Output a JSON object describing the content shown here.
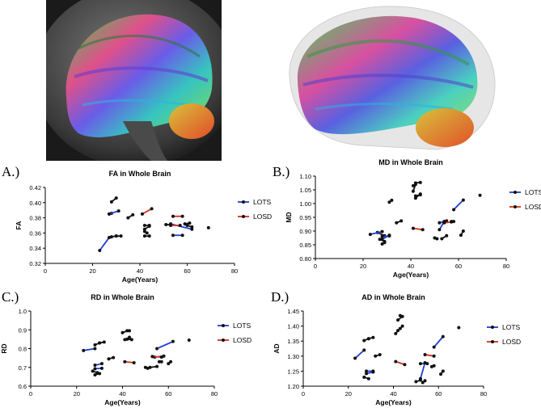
{
  "images": {
    "left": "dti-tractography-brain-sagittal-overlay",
    "right": "dti-tractography-brain-3d-render"
  },
  "legend": {
    "lots_label": "LOTS",
    "losd_label": "LOSD"
  },
  "colors": {
    "lots": "#1f3fd6",
    "losd": "#d6301a",
    "point": "#111111",
    "axis": "#000000"
  },
  "panels": [
    {
      "letter": "A.)"
    },
    {
      "letter": "B.)"
    },
    {
      "letter": "C.)"
    },
    {
      "letter": "D.)"
    }
  ],
  "chart_data": [
    {
      "type": "scatter",
      "title": "FA in Whole Brain",
      "xlabel": "Age(Years)",
      "ylabel": "FA",
      "xlim": [
        0,
        80
      ],
      "ylim": [
        0.32,
        0.42
      ],
      "xticks": [
        "0",
        "20",
        "40",
        "60",
        "80"
      ],
      "yticks": [
        "0.32",
        "0.34",
        "0.36",
        "0.38",
        "0.40",
        "0.42"
      ],
      "legend": "right",
      "lots_pairs": [
        [
          23,
          0.337,
          27,
          0.354
        ],
        [
          27,
          0.385,
          31,
          0.389
        ],
        [
          54,
          0.357,
          58,
          0.357
        ],
        [
          53,
          0.372,
          62,
          0.365
        ]
      ],
      "losd_pairs": [
        [
          41,
          0.385,
          45,
          0.392
        ],
        [
          54,
          0.382,
          58,
          0.382
        ],
        [
          53,
          0.37,
          57,
          0.37
        ]
      ],
      "black_pairs": [
        [
          28,
          0.401,
          30,
          0.406
        ],
        [
          27,
          0.385,
          28,
          0.386
        ],
        [
          28,
          0.355,
          30,
          0.356
        ],
        [
          30,
          0.356,
          32,
          0.356
        ],
        [
          35,
          0.38,
          37,
          0.384
        ],
        [
          42,
          0.356,
          44,
          0.356
        ],
        [
          42,
          0.365,
          44,
          0.369
        ],
        [
          42,
          0.37,
          44,
          0.37
        ],
        [
          51,
          0.371,
          53,
          0.371
        ],
        [
          59,
          0.372,
          61,
          0.373
        ],
        [
          60,
          0.37,
          62,
          0.368
        ]
      ],
      "singles": [
        [
          69,
          0.367
        ],
        [
          43,
          0.36
        ],
        [
          42,
          0.362
        ]
      ]
    },
    {
      "type": "scatter",
      "title": "MD in Whole Brain",
      "xlabel": "Age(Years)",
      "ylabel": "MD",
      "xlim": [
        0,
        80
      ],
      "ylim": [
        0.8,
        1.1
      ],
      "xticks": [
        "0",
        "20",
        "40",
        "60",
        "80"
      ],
      "yticks": [
        "0.80",
        "0.85",
        "0.90",
        "0.95",
        "1.00",
        "1.05",
        "1.10"
      ],
      "legend": "right",
      "lots_pairs": [
        [
          23,
          0.888,
          28,
          0.898
        ],
        [
          28,
          0.87,
          31,
          0.885
        ],
        [
          28,
          0.88,
          31,
          0.882
        ],
        [
          52,
          0.93,
          55,
          0.937
        ],
        [
          52,
          0.905,
          54,
          0.935
        ],
        [
          58,
          0.978,
          62,
          1.013
        ]
      ],
      "losd_pairs": [
        [
          41,
          0.91,
          45,
          0.905
        ],
        [
          54,
          0.93,
          57,
          0.933
        ]
      ],
      "black_pairs": [
        [
          26,
          0.895,
          29,
          0.883
        ],
        [
          27,
          0.87,
          29,
          0.862
        ],
        [
          28,
          0.853,
          29,
          0.858
        ],
        [
          31,
          1.005,
          32,
          1.012
        ],
        [
          34,
          0.93,
          36,
          0.937
        ],
        [
          41,
          1.045,
          42,
          1.07
        ],
        [
          42,
          1.075,
          44,
          1.077
        ],
        [
          42,
          1.02,
          44,
          1.035
        ],
        [
          42,
          1.028,
          44,
          1.032
        ],
        [
          50,
          0.875,
          51,
          0.872
        ],
        [
          53,
          0.872,
          55,
          0.883
        ],
        [
          57,
          0.935,
          58,
          0.935
        ],
        [
          61,
          0.885,
          62,
          0.9
        ]
      ],
      "singles": [
        [
          69,
          1.03
        ],
        [
          41,
          1.065
        ]
      ]
    },
    {
      "type": "scatter",
      "title": "RD in Whole Brain",
      "xlabel": "Age(Years)",
      "ylabel": "RD",
      "xlim": [
        0,
        80
      ],
      "ylim": [
        0.6,
        1.0
      ],
      "xticks": [
        "0",
        "20",
        "40",
        "60",
        "80"
      ],
      "yticks": [
        "0.6",
        "0.7",
        "0.8",
        "0.9",
        "1.0"
      ],
      "legend": "right",
      "lots_pairs": [
        [
          23,
          0.79,
          28,
          0.8
        ],
        [
          28,
          0.712,
          31,
          0.72
        ],
        [
          28,
          0.693,
          31,
          0.695
        ],
        [
          54,
          0.755,
          58,
          0.76
        ],
        [
          55,
          0.8,
          62,
          0.838
        ]
      ],
      "losd_pairs": [
        [
          41,
          0.73,
          45,
          0.725
        ],
        [
          53,
          0.758,
          57,
          0.755
        ]
      ],
      "black_pairs": [
        [
          28,
          0.82,
          30,
          0.83
        ],
        [
          30,
          0.83,
          32,
          0.835
        ],
        [
          27,
          0.68,
          29,
          0.672
        ],
        [
          28,
          0.66,
          30,
          0.667
        ],
        [
          34,
          0.745,
          36,
          0.752
        ],
        [
          40,
          0.885,
          42,
          0.895
        ],
        [
          41,
          0.848,
          43,
          0.86
        ],
        [
          42,
          0.85,
          44,
          0.848
        ],
        [
          50,
          0.7,
          51,
          0.695
        ],
        [
          52,
          0.7,
          55,
          0.705
        ],
        [
          56,
          0.73,
          57,
          0.73
        ],
        [
          60,
          0.72,
          61,
          0.73
        ]
      ],
      "singles": [
        [
          69,
          0.845
        ],
        [
          43,
          0.895
        ]
      ]
    },
    {
      "type": "scatter",
      "title": "AD in Whole Brain",
      "xlabel": "Age(Years)",
      "ylabel": "AD",
      "xlim": [
        0,
        80
      ],
      "ylim": [
        1.2,
        1.45
      ],
      "xticks": [
        "0",
        "20",
        "40",
        "60",
        "80"
      ],
      "yticks": [
        "1.20",
        "1.25",
        "1.30",
        "1.35",
        "1.40",
        "1.45"
      ],
      "legend": "right",
      "lots_pairs": [
        [
          23,
          1.293,
          27,
          1.32
        ],
        [
          28,
          1.242,
          31,
          1.247
        ],
        [
          28,
          1.25,
          31,
          1.25
        ],
        [
          52,
          1.275,
          55,
          1.275
        ],
        [
          52,
          1.225,
          54,
          1.278
        ],
        [
          58,
          1.33,
          62,
          1.365
        ]
      ],
      "losd_pairs": [
        [
          41,
          1.282,
          45,
          1.272
        ],
        [
          54,
          1.305,
          58,
          1.3
        ]
      ],
      "black_pairs": [
        [
          27,
          1.352,
          29,
          1.358
        ],
        [
          29,
          1.358,
          31,
          1.362
        ],
        [
          27,
          1.23,
          29,
          1.225
        ],
        [
          32,
          1.3,
          34,
          1.305
        ],
        [
          41,
          1.375,
          42,
          1.385
        ],
        [
          42,
          1.42,
          44,
          1.432
        ],
        [
          43,
          1.392,
          44,
          1.4
        ],
        [
          50,
          1.215,
          52,
          1.22
        ],
        [
          53,
          1.212,
          54,
          1.218
        ],
        [
          57,
          1.265,
          58,
          1.268
        ],
        [
          61,
          1.24,
          62,
          1.25
        ]
      ],
      "singles": [
        [
          69,
          1.395
        ],
        [
          43,
          1.435
        ]
      ]
    }
  ]
}
